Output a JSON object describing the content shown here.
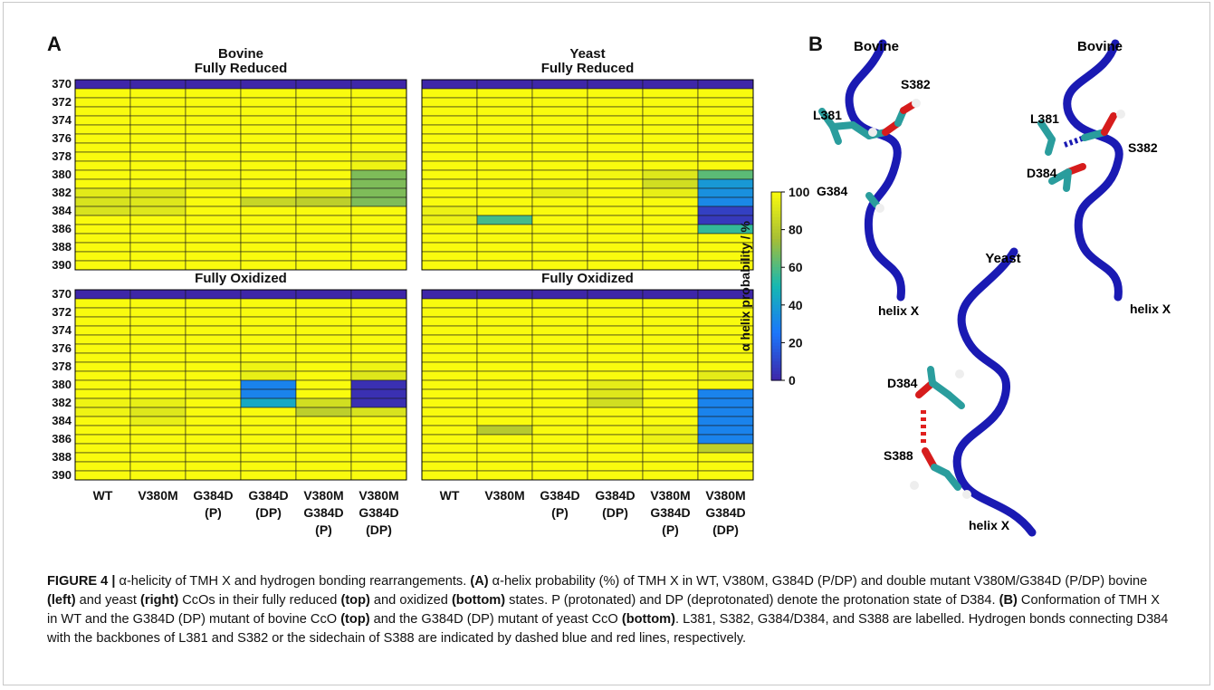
{
  "panel_a_label": "A",
  "panel_b_label": "B",
  "chart_data": {
    "type": "heatmap",
    "residues": [
      370,
      371,
      372,
      373,
      374,
      375,
      376,
      377,
      378,
      379,
      380,
      381,
      382,
      383,
      384,
      385,
      386,
      387,
      388,
      389,
      390
    ],
    "y_tick_labels": [
      "370",
      "372",
      "374",
      "376",
      "378",
      "380",
      "382",
      "384",
      "386",
      "388",
      "390"
    ],
    "x_tick_labels": [
      [
        "WT"
      ],
      [
        "V380M"
      ],
      [
        "G384D",
        "(P)"
      ],
      [
        "G384D",
        "(DP)"
      ],
      [
        "V380M",
        "G384D",
        "(P)"
      ],
      [
        "V380M",
        "G384D",
        "(DP)"
      ]
    ],
    "colorbar": {
      "label": "α helix probability / %",
      "range": [
        0,
        100
      ],
      "ticks": [
        "100",
        "80",
        "60",
        "40",
        "20",
        "0"
      ]
    },
    "panels": [
      {
        "species": "Bovine",
        "state": "Fully Reduced",
        "columns": [
          [
            0,
            100,
            100,
            100,
            100,
            100,
            100,
            100,
            100,
            100,
            100,
            100,
            93,
            90,
            90,
            100,
            100,
            100,
            100,
            100,
            100
          ],
          [
            0,
            100,
            100,
            100,
            100,
            100,
            100,
            100,
            100,
            100,
            100,
            100,
            92,
            92,
            92,
            100,
            100,
            100,
            100,
            100,
            100
          ],
          [
            0,
            100,
            100,
            100,
            100,
            100,
            100,
            100,
            100,
            100,
            100,
            97,
            100,
            100,
            100,
            100,
            100,
            100,
            100,
            100,
            100
          ],
          [
            0,
            100,
            100,
            100,
            100,
            100,
            100,
            100,
            100,
            100,
            100,
            100,
            100,
            85,
            100,
            100,
            100,
            100,
            100,
            100,
            100
          ],
          [
            0,
            100,
            100,
            100,
            100,
            100,
            100,
            100,
            100,
            100,
            100,
            100,
            93,
            82,
            100,
            100,
            100,
            100,
            100,
            100,
            100
          ],
          [
            0,
            100,
            100,
            100,
            100,
            100,
            100,
            100,
            97,
            97,
            68,
            68,
            68,
            68,
            100,
            100,
            100,
            100,
            100,
            100,
            100
          ]
        ]
      },
      {
        "species": "Yeast",
        "state": "Fully Reduced",
        "columns": [
          [
            0,
            100,
            100,
            100,
            100,
            100,
            100,
            100,
            100,
            100,
            100,
            100,
            100,
            100,
            96,
            96,
            100,
            100,
            100,
            100,
            100
          ],
          [
            0,
            100,
            100,
            100,
            100,
            100,
            100,
            100,
            100,
            100,
            100,
            100,
            100,
            100,
            100,
            58,
            100,
            100,
            100,
            100,
            100
          ],
          [
            0,
            100,
            100,
            100,
            100,
            100,
            100,
            100,
            100,
            100,
            100,
            100,
            95,
            100,
            100,
            100,
            100,
            100,
            100,
            100,
            100
          ],
          [
            0,
            100,
            100,
            100,
            100,
            100,
            100,
            100,
            100,
            100,
            98,
            100,
            100,
            100,
            100,
            100,
            100,
            100,
            100,
            100,
            100
          ],
          [
            0,
            100,
            100,
            100,
            100,
            100,
            100,
            100,
            100,
            100,
            92,
            88,
            95,
            100,
            100,
            100,
            100,
            100,
            100,
            100,
            100
          ],
          [
            0,
            100,
            100,
            100,
            100,
            100,
            100,
            100,
            100,
            100,
            62,
            38,
            35,
            32,
            8,
            6,
            55,
            100,
            100,
            100,
            100
          ]
        ]
      },
      {
        "species": "",
        "state": "Fully Oxidized",
        "columns": [
          [
            0,
            100,
            100,
            100,
            100,
            100,
            100,
            100,
            100,
            100,
            100,
            100,
            97,
            97,
            100,
            100,
            100,
            100,
            100,
            100,
            100
          ],
          [
            0,
            100,
            100,
            100,
            100,
            100,
            100,
            100,
            100,
            100,
            100,
            100,
            95,
            92,
            95,
            100,
            100,
            100,
            100,
            100,
            100
          ],
          [
            0,
            100,
            100,
            100,
            100,
            100,
            100,
            100,
            100,
            100,
            100,
            97,
            100,
            100,
            100,
            100,
            100,
            100,
            100,
            100,
            100
          ],
          [
            0,
            100,
            100,
            100,
            100,
            100,
            100,
            100,
            97,
            95,
            30,
            30,
            44,
            100,
            100,
            100,
            100,
            100,
            100,
            100,
            100
          ],
          [
            0,
            100,
            100,
            100,
            100,
            100,
            100,
            100,
            100,
            100,
            100,
            100,
            88,
            82,
            100,
            100,
            100,
            100,
            100,
            100,
            100
          ],
          [
            0,
            100,
            100,
            100,
            100,
            100,
            100,
            100,
            97,
            92,
            3,
            3,
            3,
            90,
            100,
            100,
            100,
            100,
            100,
            100,
            100
          ]
        ]
      },
      {
        "species": "",
        "state": "Fully Oxidized",
        "columns": [
          [
            0,
            100,
            100,
            100,
            100,
            100,
            100,
            100,
            100,
            100,
            100,
            100,
            100,
            100,
            100,
            100,
            100,
            100,
            100,
            100,
            100
          ],
          [
            0,
            100,
            100,
            100,
            100,
            100,
            100,
            100,
            100,
            100,
            100,
            100,
            100,
            100,
            100,
            80,
            100,
            100,
            100,
            100,
            100
          ],
          [
            0,
            100,
            100,
            100,
            100,
            100,
            100,
            100,
            100,
            100,
            100,
            100,
            100,
            100,
            100,
            100,
            100,
            100,
            100,
            100,
            100
          ],
          [
            0,
            100,
            100,
            100,
            100,
            100,
            100,
            100,
            100,
            100,
            94,
            92,
            88,
            100,
            100,
            100,
            100,
            100,
            100,
            100,
            100
          ],
          [
            0,
            100,
            100,
            100,
            100,
            100,
            100,
            100,
            100,
            100,
            100,
            100,
            100,
            100,
            100,
            97,
            96,
            100,
            100,
            100,
            100
          ],
          [
            0,
            100,
            100,
            100,
            100,
            100,
            100,
            100,
            100,
            94,
            100,
            30,
            30,
            30,
            30,
            30,
            30,
            82,
            100,
            100,
            100
          ]
        ]
      }
    ]
  },
  "structure_panel": {
    "views": [
      {
        "title": "Bovine",
        "residues": [
          "L381",
          "S382",
          "G384"
        ],
        "helix_label": "helix X"
      },
      {
        "title": "Bovine",
        "residues": [
          "L381",
          "S382",
          "D384"
        ],
        "helix_label": "helix X"
      },
      {
        "title": "Yeast",
        "residues": [
          "D384",
          "S388"
        ],
        "helix_label": "helix X"
      }
    ]
  },
  "caption": {
    "figure_label": "FIGURE 4 |",
    "title": " α-helicity of TMH X and hydrogen bonding rearrangements. ",
    "part_a_label": "(A)",
    "part_a_text": " α-helix probability (%) of TMH X in WT, V380M, G384D (P/DP) and double mutant V380M/G384D (P/DP) bovine ",
    "left": "(left)",
    "mid1": " and yeast ",
    "right": "(right)",
    "mid2": " CcOs in their fully reduced ",
    "top": "(top)",
    "mid3": " and oxidized ",
    "bottom": "(bottom)",
    "part_a_end": " states. P (protonated) and DP (deprotonated) denote the protonation state of D384. ",
    "part_b_label": "(B)",
    "part_b_text": " Conformation of TMH X in WT and the G384D (DP) mutant of bovine CcO ",
    "top2": "(top)",
    "mid4": " and the G384D (DP) mutant of yeast CcO ",
    "bottom2": "(bottom)",
    "end": ". L381, S382, G384/D384, and S388 are labelled. Hydrogen bonds connecting D384 with the backbones of L381 and S382 or the sidechain of S388 are indicated by dashed blue and red lines, respectively."
  }
}
